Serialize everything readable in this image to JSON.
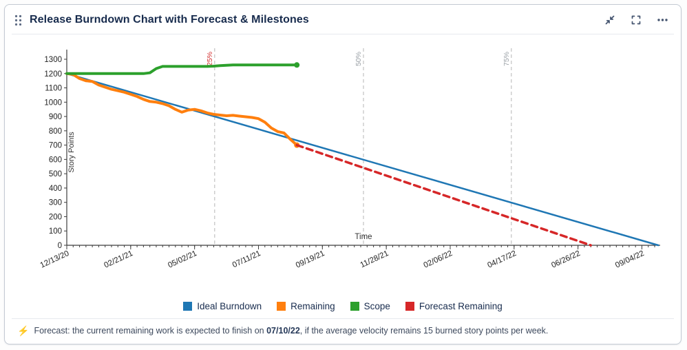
{
  "card": {
    "title": "Release Burndown Chart with Forecast & Milestones"
  },
  "icons": {
    "drag_handle": "six-dot-grip",
    "collapse": "arrows-pointing-inward",
    "fullscreen": "corner-brackets",
    "more": "horizontal-ellipsis",
    "forecast_bolt": "⚡"
  },
  "colors": {
    "title_text": "#172b4d",
    "header_icon": "#44546f",
    "axis": "#3c3c3c",
    "tick_text": "#222222",
    "milestone_line": "#b5b5b5"
  },
  "chart_data": {
    "type": "line",
    "title": "",
    "xlabel": "Time",
    "ylabel": "Story Points",
    "ylim": [
      0,
      1300
    ],
    "y_ticks": [
      0,
      100,
      200,
      300,
      400,
      500,
      600,
      700,
      800,
      900,
      1000,
      1100,
      1200,
      1300
    ],
    "xlim_days": [
      0,
      650
    ],
    "x_minor_tick_interval_days": 7,
    "x_tick_days": [
      0,
      70,
      140,
      210,
      280,
      350,
      420,
      490,
      560,
      630
    ],
    "x_tick_labels": [
      "12/13/20",
      "02/21/21",
      "05/02/21",
      "07/11/21",
      "09/19/21",
      "11/28/21",
      "02/06/22",
      "04/17/22",
      "06/26/22",
      "09/04/22"
    ],
    "grid": false,
    "legend_position": "bottom",
    "milestones": [
      {
        "label": "25%",
        "day": 162,
        "color": "#d32f2f"
      },
      {
        "label": "50%",
        "day": 325,
        "color": "#9aa0a6"
      },
      {
        "label": "75%",
        "day": 487,
        "color": "#9aa0a6"
      }
    ],
    "series": [
      {
        "name": "Ideal Burndown",
        "color": "#1f77b4",
        "style": "solid",
        "width": 2.5,
        "end_marker": false,
        "points": [
          [
            0,
            1200
          ],
          [
            648,
            0
          ]
        ]
      },
      {
        "name": "Remaining",
        "color": "#ff7f0e",
        "style": "solid",
        "width": 4,
        "end_marker": true,
        "points": [
          [
            0,
            1200
          ],
          [
            7,
            1193
          ],
          [
            14,
            1165
          ],
          [
            21,
            1150
          ],
          [
            28,
            1145
          ],
          [
            35,
            1120
          ],
          [
            42,
            1105
          ],
          [
            49,
            1090
          ],
          [
            56,
            1080
          ],
          [
            63,
            1070
          ],
          [
            70,
            1055
          ],
          [
            77,
            1040
          ],
          [
            84,
            1020
          ],
          [
            91,
            1005
          ],
          [
            98,
            1000
          ],
          [
            105,
            990
          ],
          [
            112,
            975
          ],
          [
            119,
            950
          ],
          [
            126,
            930
          ],
          [
            133,
            945
          ],
          [
            140,
            950
          ],
          [
            147,
            940
          ],
          [
            154,
            925
          ],
          [
            161,
            915
          ],
          [
            168,
            910
          ],
          [
            175,
            905
          ],
          [
            182,
            908
          ],
          [
            189,
            903
          ],
          [
            196,
            898
          ],
          [
            203,
            893
          ],
          [
            210,
            885
          ],
          [
            217,
            860
          ],
          [
            224,
            820
          ],
          [
            231,
            795
          ],
          [
            238,
            785
          ],
          [
            245,
            740
          ],
          [
            252,
            700
          ]
        ]
      },
      {
        "name": "Scope",
        "color": "#2ca02c",
        "style": "solid",
        "width": 4,
        "end_marker": true,
        "points": [
          [
            0,
            1200
          ],
          [
            84,
            1200
          ],
          [
            91,
            1205
          ],
          [
            98,
            1235
          ],
          [
            105,
            1250
          ],
          [
            154,
            1250
          ],
          [
            161,
            1252
          ],
          [
            168,
            1255
          ],
          [
            175,
            1258
          ],
          [
            182,
            1260
          ],
          [
            252,
            1260
          ]
        ]
      },
      {
        "name": "Forecast Remaining",
        "color": "#d62728",
        "style": "dashed",
        "width": 3.5,
        "end_marker": false,
        "points": [
          [
            252,
            700
          ],
          [
            574,
            0
          ]
        ]
      }
    ]
  },
  "footer": {
    "icon": "⚡",
    "text_before": "Forecast: the current remaining work is expected to finish on ",
    "date": "07/10/22",
    "text_after": ", if the average velocity remains 15 burned story points per week."
  }
}
